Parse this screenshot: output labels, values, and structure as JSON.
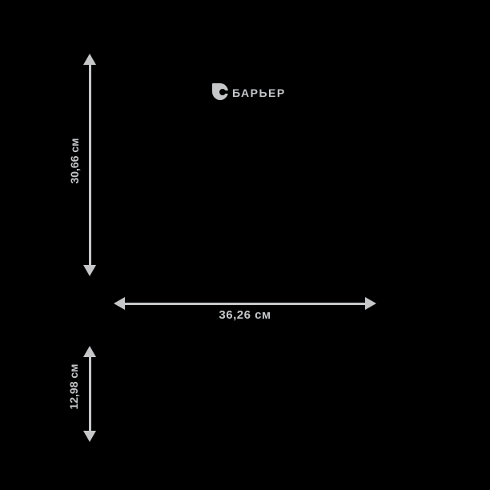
{
  "page": {
    "background_color": "#000000",
    "accent_color": "#c5c7c9",
    "description": "product-dimensions-render"
  },
  "brand": {
    "logo_text": "БАРЬЕР",
    "logo_icon": "droplet-icon"
  },
  "dimensions": {
    "unit": "см",
    "height_label": "30,66 см",
    "width_label": "36,26 см",
    "depth_label": "12,98 см"
  }
}
